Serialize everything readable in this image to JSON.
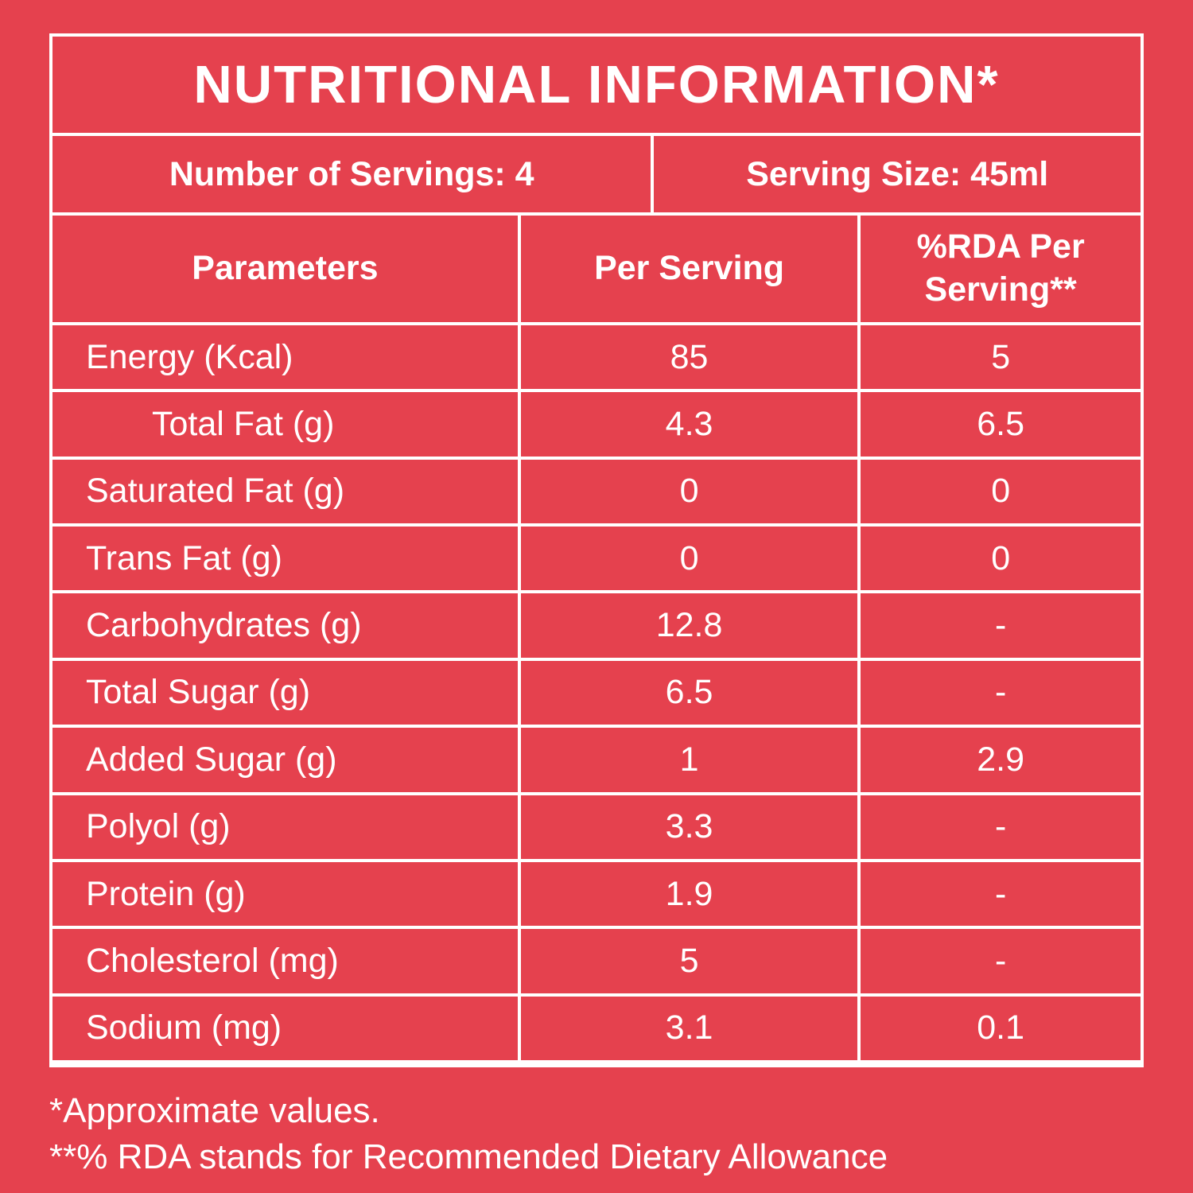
{
  "page": {
    "background_color": "#E5414E",
    "text_color": "#FFFFFF",
    "border_color": "#FFFFFF"
  },
  "table": {
    "title": "NUTRITIONAL INFORMATION*",
    "servings_label": "Number of Servings: 4",
    "serving_size_label": "Serving Size: 45ml",
    "columns": [
      "Parameters",
      "Per Serving",
      "%RDA Per Serving**"
    ],
    "rows": [
      {
        "parameter": "Energy (Kcal)",
        "per_serving": "85",
        "rda_per_serving": "5"
      },
      {
        "parameter": "Total Fat (g)",
        "per_serving": "4.3",
        "rda_per_serving": "6.5"
      },
      {
        "parameter": "Saturated Fat (g)",
        "per_serving": "0",
        "rda_per_serving": "0"
      },
      {
        "parameter": "Trans Fat (g)",
        "per_serving": "0",
        "rda_per_serving": "0"
      },
      {
        "parameter": "Carbohydrates (g)",
        "per_serving": "12.8",
        "rda_per_serving": "-"
      },
      {
        "parameter": "Total Sugar (g)",
        "per_serving": "6.5",
        "rda_per_serving": "-"
      },
      {
        "parameter": "Added Sugar (g)",
        "per_serving": "1",
        "rda_per_serving": "2.9"
      },
      {
        "parameter": "Polyol (g)",
        "per_serving": "3.3",
        "rda_per_serving": "-"
      },
      {
        "parameter": "Protein (g)",
        "per_serving": "1.9",
        "rda_per_serving": "-"
      },
      {
        "parameter": "Cholesterol (mg)",
        "per_serving": "5",
        "rda_per_serving": "-"
      },
      {
        "parameter": "Sodium (mg)",
        "per_serving": "3.1",
        "rda_per_serving": "0.1"
      }
    ]
  },
  "footnotes": [
    "*Approximate values.",
    "**% RDA stands for Recommended Dietary Allowance"
  ]
}
